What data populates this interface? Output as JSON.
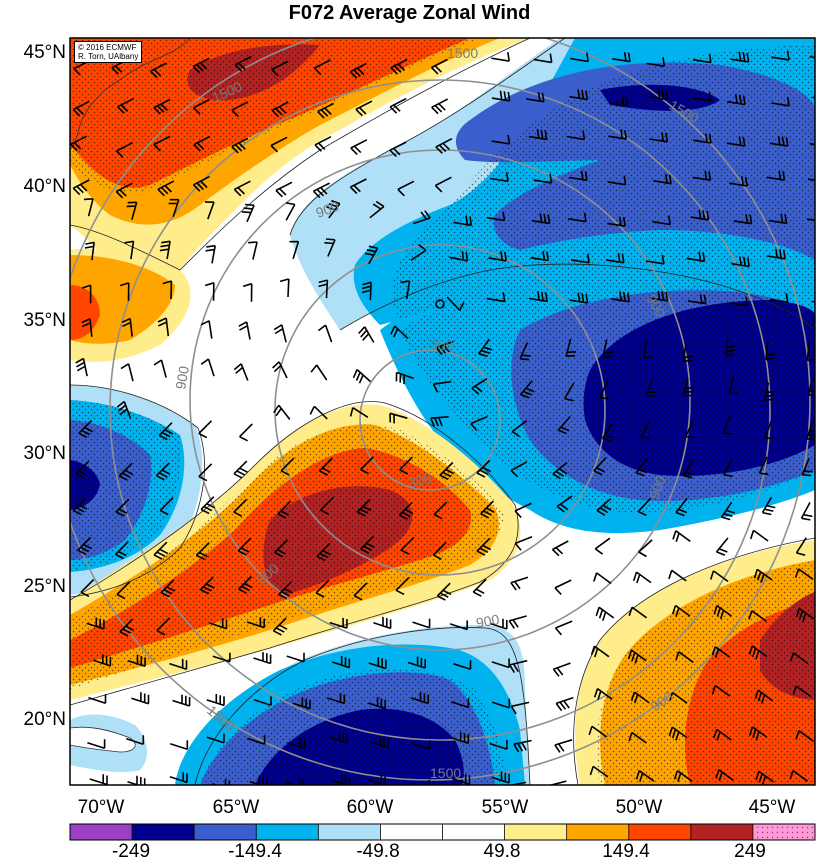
{
  "title": "F072 Average Zonal Wind",
  "credit": {
    "line1": "© 2016 ECMWF",
    "line2": "R. Torn, UAlbany"
  },
  "lat_labels": [
    "45°N",
    "40°N",
    "35°N",
    "30°N",
    "25°N",
    "20°N"
  ],
  "lon_labels": [
    "70°W",
    "65°W",
    "60°W",
    "55°W",
    "50°W",
    "45°W"
  ],
  "contour_labels": [
    "1500",
    "1500",
    "1500",
    "900",
    "900",
    "900",
    "300",
    "300",
    "900",
    "900",
    "900",
    "1500",
    "900",
    "1500"
  ],
  "colorbar": {
    "labels": [
      "-249",
      "-149.4",
      "-49.8",
      "49.8",
      "149.4",
      "249"
    ],
    "colors": [
      "#9b3fc4",
      "#00008c",
      "#3a5fcd",
      "#00b2ee",
      "#afe0f7",
      "#ffffff",
      "#ffffff",
      "#ffec8b",
      "#ffa500",
      "#ff4500",
      "#b22222",
      "#ff9ad9"
    ]
  },
  "map": {
    "lat_range": [
      17.5,
      46
    ],
    "lon_range": [
      -71,
      -43.5
    ],
    "fill_levels": [
      -249,
      -199.2,
      -149.4,
      -99.6,
      -49.8,
      0,
      49.8,
      99.6,
      149.4,
      199.2,
      249
    ],
    "range_ring_center": {
      "lat": 35.3,
      "lon": -56.6
    },
    "range_rings": [
      300,
      900,
      1500
    ]
  }
}
